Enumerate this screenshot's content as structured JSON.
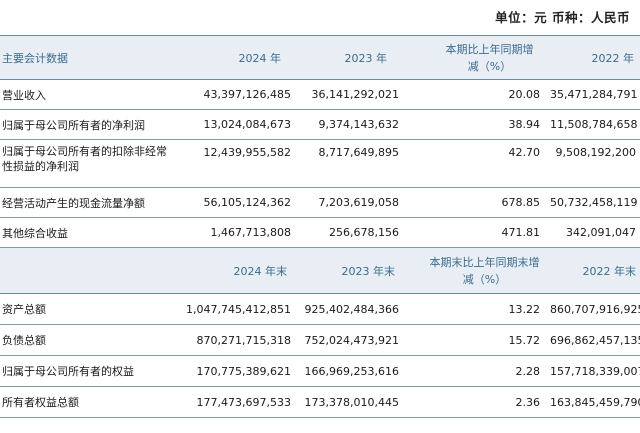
{
  "unit_line": "单位：元 币种：人民币",
  "section1": {
    "headers": [
      "主要会计数据",
      "2024 年",
      "2023 年",
      "本期比上年同期增减（%）",
      "2022 年"
    ],
    "rows": [
      {
        "label": "营业收入",
        "v2024": "43,397,126,485",
        "v2023": "36,141,292,021",
        "change": "20.08",
        "v2022": "35,471,284,791"
      },
      {
        "label": "归属于母公司所有者的净利润",
        "v2024": "13,024,084,673",
        "v2023": "9,374,143,632",
        "change": "38.94",
        "v2022": "11,508,784,658"
      },
      {
        "label": "归属于母公司所有者的扣除非经常性损益的净利润",
        "v2024": "12,439,955,582",
        "v2023": "8,717,649,895",
        "change": "42.70",
        "v2022": "9,508,192,200"
      },
      {
        "label": "经营活动产生的现金流量净额",
        "v2024": "56,105,124,362",
        "v2023": "7,203,619,058",
        "change": "678.85",
        "v2022": "50,732,458,119"
      },
      {
        "label": "其他综合收益",
        "v2024": "1,467,713,808",
        "v2023": "256,678,156",
        "change": "471.81",
        "v2022": "342,091,047"
      }
    ]
  },
  "section2": {
    "headers": [
      "",
      "2024 年末",
      "2023 年末",
      "本期末比上年同期末增减（%）",
      "2022 年末"
    ],
    "rows": [
      {
        "label": "资产总额",
        "v2024": "1,047,745,412,851",
        "v2023": "925,402,484,366",
        "change": "13.22",
        "v2022": "860,707,916,925"
      },
      {
        "label": "负债总额",
        "v2024": "870,271,715,318",
        "v2023": "752,024,473,921",
        "change": "15.72",
        "v2022": "696,862,457,135"
      },
      {
        "label": "归属于母公司所有者的权益",
        "v2024": "170,775,389,621",
        "v2023": "166,969,253,616",
        "change": "2.28",
        "v2022": "157,718,339,007"
      },
      {
        "label": "所有者权益总额",
        "v2024": "177,473,697,533",
        "v2023": "173,378,010,445",
        "change": "2.36",
        "v2022": "163,845,459,790"
      }
    ]
  }
}
